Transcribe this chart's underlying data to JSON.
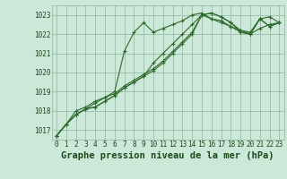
{
  "title": "Graphe pression niveau de la mer (hPa)",
  "xlabel": "Graphe pression niveau de la mer (hPa)",
  "hours": [
    0,
    1,
    2,
    3,
    4,
    5,
    6,
    7,
    8,
    9,
    10,
    11,
    12,
    13,
    14,
    15,
    16,
    17,
    18,
    19,
    20,
    21,
    22,
    23
  ],
  "series": [
    [
      1016.7,
      1017.3,
      1017.8,
      1018.1,
      1018.4,
      1018.7,
      1019.0,
      1021.1,
      1022.1,
      1022.6,
      1022.1,
      1022.3,
      1022.5,
      1022.7,
      1023.0,
      1023.1,
      1022.8,
      1022.7,
      1022.4,
      1022.1,
      1022.0,
      1022.3,
      1022.5,
      1022.6
    ],
    [
      1016.7,
      1017.3,
      1017.8,
      1018.1,
      1018.2,
      1018.5,
      1018.8,
      1019.2,
      1019.5,
      1019.8,
      1020.5,
      1021.0,
      1021.5,
      1022.0,
      1022.5,
      1023.0,
      1023.1,
      1022.9,
      1022.6,
      1022.2,
      1022.1,
      1022.8,
      1022.9,
      1022.6
    ],
    [
      1016.7,
      1017.3,
      1017.8,
      1018.1,
      1018.2,
      1018.5,
      1018.8,
      1019.2,
      1019.5,
      1019.8,
      1020.1,
      1020.5,
      1021.0,
      1021.5,
      1022.0,
      1023.0,
      1023.1,
      1022.9,
      1022.6,
      1022.1,
      1022.0,
      1022.8,
      1022.4,
      1022.6
    ],
    [
      1016.7,
      1017.3,
      1018.0,
      1018.2,
      1018.5,
      1018.7,
      1018.9,
      1019.3,
      1019.6,
      1019.9,
      1020.2,
      1020.6,
      1021.1,
      1021.6,
      1022.1,
      1023.0,
      1022.8,
      1022.6,
      1022.4,
      1022.2,
      1022.0,
      1022.8,
      1022.4,
      1022.6
    ]
  ],
  "line_color": "#2d6a2d",
  "marker_color": "#2d6a2d",
  "bg_color": "#cce8d8",
  "grid_color": "#9abcaa",
  "ylim": [
    1016.5,
    1023.5
  ],
  "yticks": [
    1017,
    1018,
    1019,
    1020,
    1021,
    1022,
    1023
  ],
  "xlim": [
    -0.5,
    23.5
  ],
  "label_color": "#1a4a1a",
  "tick_fontsize": 5.5,
  "xlabel_fontsize": 7.5
}
